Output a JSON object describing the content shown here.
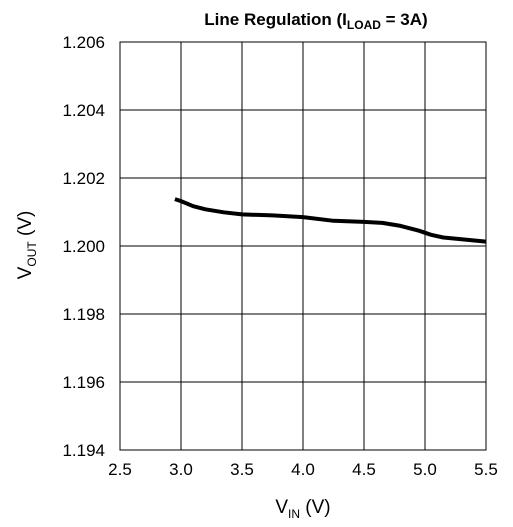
{
  "chart_data": {
    "type": "line",
    "title": {
      "main": "Line Regulation (I",
      "sub": "LOAD",
      "tail": " = 3A)"
    },
    "xlabel": {
      "main": "V",
      "sub": "IN",
      "tail": " (V)"
    },
    "ylabel": {
      "main": "V",
      "sub": "OUT",
      "tail": " (V)"
    },
    "xlim": [
      2.5,
      5.5
    ],
    "ylim": [
      1.194,
      1.206
    ],
    "xticks": [
      "2.5",
      "3.0",
      "3.5",
      "4.0",
      "4.5",
      "5.0",
      "5.5"
    ],
    "yticks": [
      "1.194",
      "1.196",
      "1.198",
      "1.200",
      "1.202",
      "1.204",
      "1.206"
    ],
    "grid": true,
    "series": [
      {
        "color": "#000000",
        "x": [
          2.95,
          3.0,
          3.1,
          3.2,
          3.35,
          3.5,
          3.75,
          4.0,
          4.25,
          4.5,
          4.65,
          4.8,
          4.95,
          5.05,
          5.15,
          5.3,
          5.5
        ],
        "y": [
          1.20138,
          1.20132,
          1.20117,
          1.20108,
          1.20099,
          1.20093,
          1.2009,
          1.20085,
          1.20074,
          1.20071,
          1.20068,
          1.20059,
          1.20045,
          1.20033,
          1.20025,
          1.2002,
          1.20013
        ]
      }
    ]
  }
}
